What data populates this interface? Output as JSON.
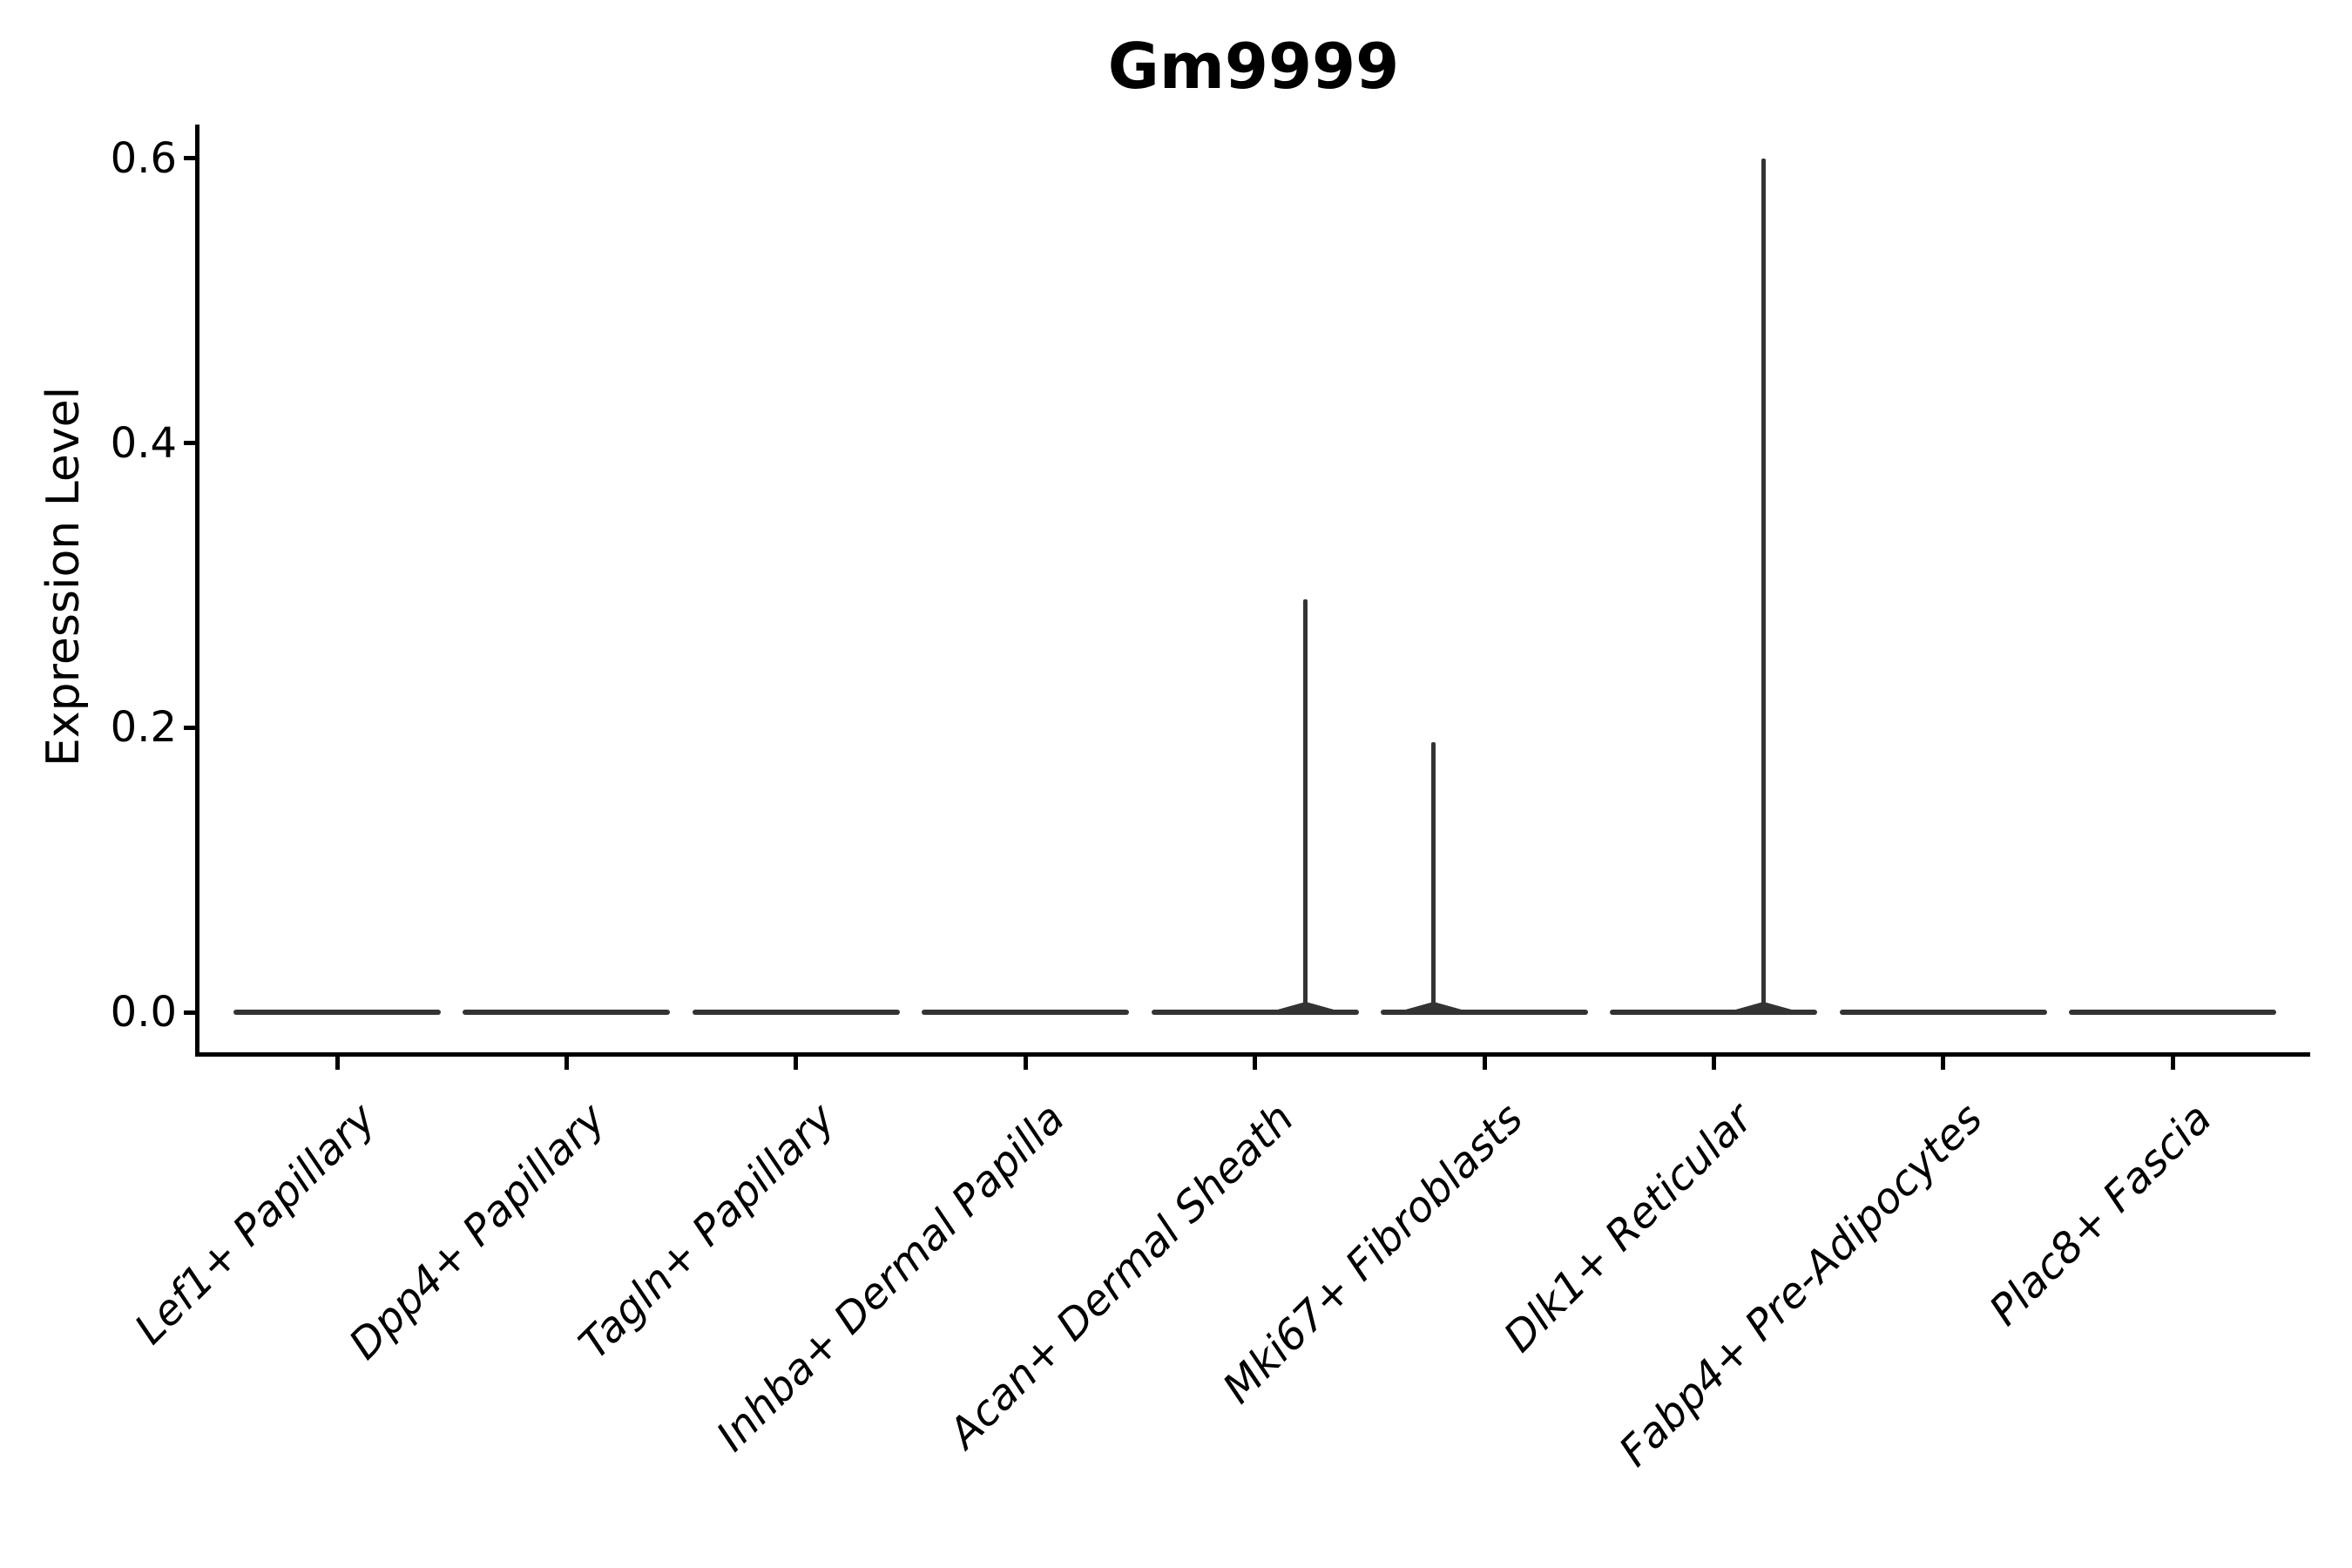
{
  "title": "Gm9999",
  "colors": {
    "background": "#ffffff",
    "axis": "#000000",
    "text": "#000000",
    "violin_stroke": "#333333"
  },
  "chart_data": {
    "type": "violin",
    "title": "Gm9999",
    "xlabel": "",
    "ylabel": "Expression Level",
    "ylim": [
      0,
      0.62
    ],
    "yticks": [
      0.0,
      0.2,
      0.4,
      0.6
    ],
    "ytick_labels": [
      "0.0",
      "0.2",
      "0.4",
      "0.6"
    ],
    "grid": false,
    "legend": "none",
    "categories": [
      "Lef1+ Papillary",
      "Dpp4+ Papillary",
      "Tagln+ Papillary",
      "Inhba+ Dermal Papilla",
      "Acan+ Dermal Sheath",
      "Mki67+ Fibroblasts",
      "Dlk1+ Reticular",
      "Fabp4+ Pre-Adipocytes",
      "Plac8+ Fascia"
    ],
    "violins": [
      {
        "category": "Lef1+ Papillary",
        "body_value": 0.0,
        "spike_max": 0.0,
        "spike_offset_frac": 0
      },
      {
        "category": "Dpp4+ Papillary",
        "body_value": 0.0,
        "spike_max": 0.0,
        "spike_offset_frac": 0
      },
      {
        "category": "Tagln+ Papillary",
        "body_value": 0.0,
        "spike_max": 0.0,
        "spike_offset_frac": 0
      },
      {
        "category": "Inhba+ Dermal Papilla",
        "body_value": 0.0,
        "spike_max": 0.0,
        "spike_offset_frac": 0
      },
      {
        "category": "Acan+ Dermal Sheath",
        "body_value": 0.0,
        "spike_max": 0.29,
        "spike_offset_frac": 0.49
      },
      {
        "category": "Mki67+ Fibroblasts",
        "body_value": 0.0,
        "spike_max": 0.19,
        "spike_offset_frac": -0.49
      },
      {
        "category": "Dlk1+ Reticular",
        "body_value": 0.0,
        "spike_max": 0.6,
        "spike_offset_frac": 0.48
      },
      {
        "category": "Fabp4+ Pre-Adipocytes",
        "body_value": 0.0,
        "spike_max": 0.0,
        "spike_offset_frac": 0
      },
      {
        "category": "Plac8+ Fascia",
        "body_value": 0.0,
        "spike_max": 0.0,
        "spike_offset_frac": 0
      }
    ]
  }
}
